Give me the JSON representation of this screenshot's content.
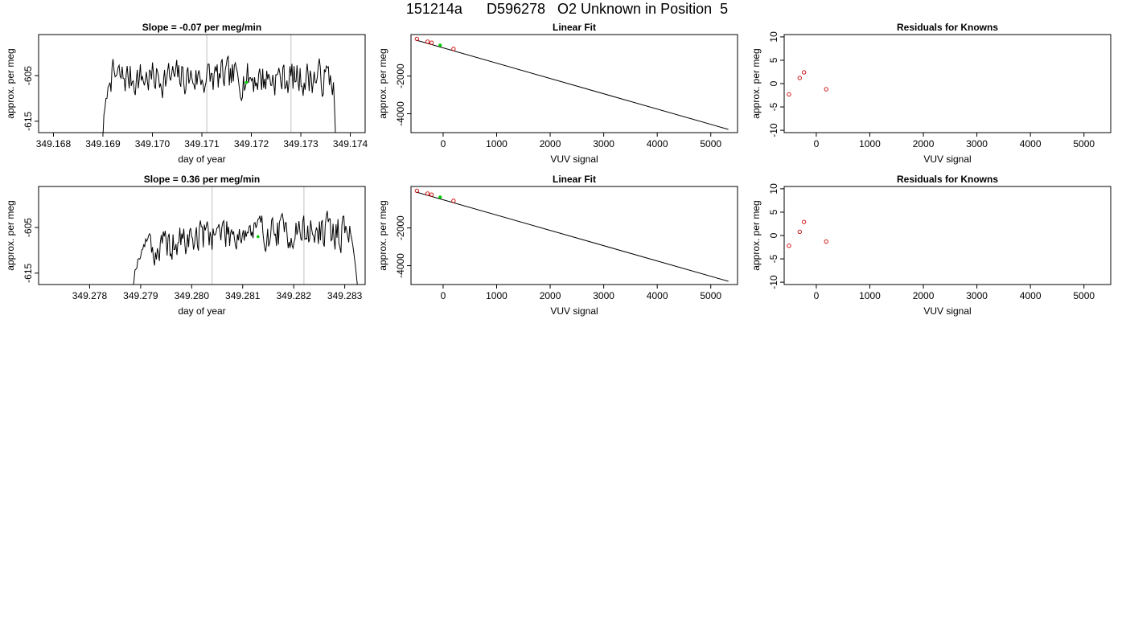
{
  "figure_title": "151214a      D596278   O2 Unknown in Position  5",
  "colors": {
    "trace": "#000000",
    "vline": "#cccccc",
    "known": "#cc0000",
    "unknown": "#00cc00",
    "fit": "#000000"
  },
  "chart_data": [
    {
      "id": "r1-timeseries",
      "type": "line",
      "title": "Slope =  -0.07  per meg/min",
      "xlabel": "day of year",
      "ylabel": "approx. per meg",
      "xlim": [
        349.1677,
        349.1743
      ],
      "ylim": [
        -617.5,
        -596.0
      ],
      "xticks": [
        349.168,
        349.169,
        349.17,
        349.171,
        349.172,
        349.173,
        349.174
      ],
      "xtick_labels": [
        "349.168",
        "349.169",
        "349.170",
        "349.171",
        "349.172",
        "349.173",
        "349.174"
      ],
      "yticks": [
        -605,
        -615
      ],
      "ytick_labels": [
        "-605",
        "-615"
      ],
      "vlines": [
        349.1711,
        349.1728
      ],
      "trace": {
        "x_start": 349.169,
        "x_end": 349.1737,
        "rise_end": 349.16915,
        "fall_start": 349.17365,
        "level": -605.5,
        "base": -618,
        "amplitude": 2.2,
        "seed": 7
      },
      "unknown_point": {
        "x": 349.1719,
        "y": -606.5
      }
    },
    {
      "id": "r1-fit",
      "type": "scatter",
      "title": "Linear Fit",
      "xlabel": "VUV signal",
      "ylabel": "approx. per meg",
      "xlim": [
        -600,
        5500
      ],
      "ylim": [
        -5000,
        200
      ],
      "xticks": [
        0,
        1000,
        2000,
        3000,
        4000,
        5000
      ],
      "xtick_labels": [
        "0",
        "1000",
        "2000",
        "3000",
        "4000",
        "5000"
      ],
      "yticks": [
        -2000,
        -4000
      ],
      "ytick_labels": [
        "-2000",
        "-4000"
      ],
      "fit_line": {
        "x": [
          -500,
          5330
        ],
        "y": [
          -100,
          -4830
        ]
      },
      "knowns": {
        "x": [
          -490,
          -290,
          -215,
          195
        ],
        "y": [
          -30,
          -180,
          -230,
          -560
        ]
      },
      "unknown": {
        "x": -55,
        "y": -365
      }
    },
    {
      "id": "r1-resid",
      "type": "scatter",
      "title": "Residuals for Knowns",
      "xlabel": "VUV signal",
      "ylabel": "approx. per meg",
      "xlim": [
        -600,
        5500
      ],
      "ylim": [
        -10.5,
        10.5
      ],
      "xticks": [
        0,
        1000,
        2000,
        3000,
        4000,
        5000
      ],
      "xtick_labels": [
        "0",
        "1000",
        "2000",
        "3000",
        "4000",
        "5000"
      ],
      "yticks": [
        10,
        5,
        0,
        -5,
        -10
      ],
      "ytick_labels": [
        "10",
        "5",
        "0",
        "-5",
        "-10"
      ],
      "knowns": {
        "x": [
          -510,
          -310,
          -230,
          185
        ],
        "y": [
          -2.3,
          1.2,
          2.4,
          -1.2
        ]
      }
    },
    {
      "id": "r2-timeseries",
      "type": "line",
      "title": "Slope =  0.36  per meg/min",
      "xlabel": "day of year",
      "ylabel": "approx. per meg",
      "xlim": [
        349.277,
        349.2834
      ],
      "ylim": [
        -617.5,
        -596.0
      ],
      "xticks": [
        349.278,
        349.279,
        349.28,
        349.281,
        349.282,
        349.283
      ],
      "xtick_labels": [
        "349.278",
        "349.279",
        "349.280",
        "349.281",
        "349.282",
        "349.283"
      ],
      "yticks": [
        -605,
        -615
      ],
      "ytick_labels": [
        "-605",
        "-615"
      ],
      "vlines": [
        349.2804,
        349.2822
      ],
      "trace": {
        "x_start": 349.27885,
        "x_end": 349.28325,
        "rise_end": 349.2792,
        "fall_start": 349.2831,
        "level": -606.0,
        "base": -618,
        "amplitude": 2.2,
        "seed": 19,
        "ramp_from": -610.5
      },
      "unknown_point": {
        "x": 349.2813,
        "y": -607.0
      }
    },
    {
      "id": "r2-fit",
      "type": "scatter",
      "title": "Linear Fit",
      "xlabel": "VUV signal",
      "ylabel": "approx. per meg",
      "xlim": [
        -600,
        5500
      ],
      "ylim": [
        -5000,
        200
      ],
      "xticks": [
        0,
        1000,
        2000,
        3000,
        4000,
        5000
      ],
      "xtick_labels": [
        "0",
        "1000",
        "2000",
        "3000",
        "4000",
        "5000"
      ],
      "yticks": [
        -2000,
        -4000
      ],
      "ytick_labels": [
        "-2000",
        "-4000"
      ],
      "fit_line": {
        "x": [
          -500,
          5330
        ],
        "y": [
          -100,
          -4830
        ]
      },
      "knowns": {
        "x": [
          -490,
          -290,
          -215,
          195
        ],
        "y": [
          -30,
          -180,
          -230,
          -560
        ]
      },
      "unknown": {
        "x": -55,
        "y": -365
      }
    },
    {
      "id": "r2-resid",
      "type": "scatter",
      "title": "Residuals for Knowns",
      "xlabel": "VUV signal",
      "ylabel": "approx. per meg",
      "xlim": [
        -600,
        5500
      ],
      "ylim": [
        -10.5,
        10.5
      ],
      "xticks": [
        0,
        1000,
        2000,
        3000,
        4000,
        5000
      ],
      "xtick_labels": [
        "0",
        "1000",
        "2000",
        "3000",
        "4000",
        "5000"
      ],
      "yticks": [
        10,
        5,
        0,
        -5,
        -10
      ],
      "ytick_labels": [
        "10",
        "5",
        "0",
        "-5",
        "-10"
      ],
      "knowns": {
        "x": [
          -510,
          -310,
          -230,
          185
        ],
        "y": [
          -2.2,
          0.8,
          2.9,
          -1.3
        ]
      }
    }
  ]
}
